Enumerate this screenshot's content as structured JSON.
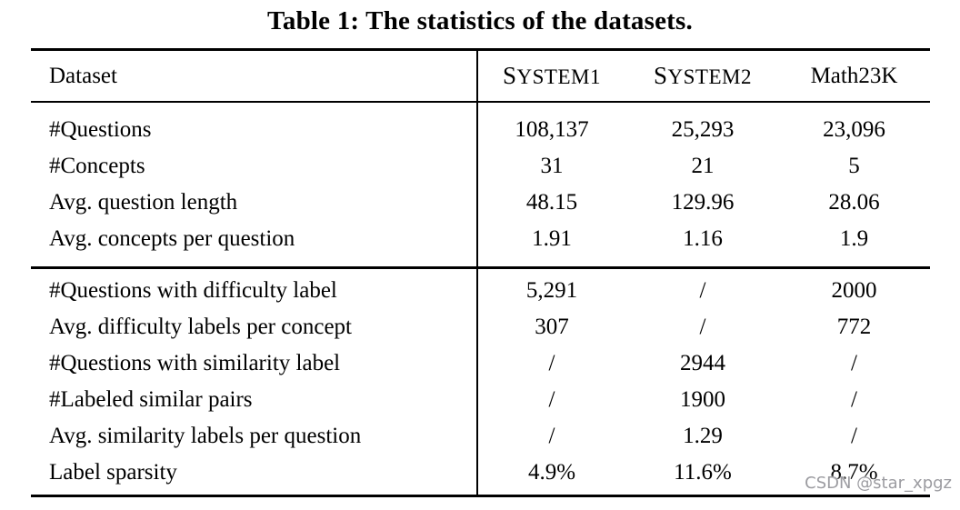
{
  "caption": "Table 1: The statistics of the datasets.",
  "table": {
    "header": {
      "label": "Dataset",
      "columns": [
        "SYSTEM1",
        "SYSTEM2",
        "Math23K"
      ]
    },
    "sections": [
      {
        "rows": [
          {
            "label": "#Questions",
            "values": [
              "108,137",
              "25,293",
              "23,096"
            ]
          },
          {
            "label": "#Concepts",
            "values": [
              "31",
              "21",
              "5"
            ]
          },
          {
            "label": "Avg. question length",
            "values": [
              "48.15",
              "129.96",
              "28.06"
            ]
          },
          {
            "label": "Avg. concepts per question",
            "values": [
              "1.91",
              "1.16",
              "1.9"
            ]
          }
        ]
      },
      {
        "rows": [
          {
            "label": "#Questions with difficulty label",
            "values": [
              "5,291",
              "/",
              "2000"
            ]
          },
          {
            "label": "Avg. difficulty labels per concept",
            "values": [
              "307",
              "/",
              "772"
            ]
          },
          {
            "label": "#Questions with similarity label",
            "values": [
              "/",
              "2944",
              "/"
            ]
          },
          {
            "label": "#Labeled similar pairs",
            "values": [
              "/",
              "1900",
              "/"
            ]
          },
          {
            "label": "Avg. similarity labels per question",
            "values": [
              "/",
              "1.29",
              "/"
            ]
          },
          {
            "label": "Label sparsity",
            "values": [
              "4.9%",
              "11.6%",
              "8.7%"
            ]
          }
        ]
      }
    ]
  },
  "watermark": "CSDN @star_xpgz",
  "colors": {
    "text": "#000000",
    "background": "#ffffff",
    "rule": "#000000",
    "watermark": "#9c9ca1"
  }
}
